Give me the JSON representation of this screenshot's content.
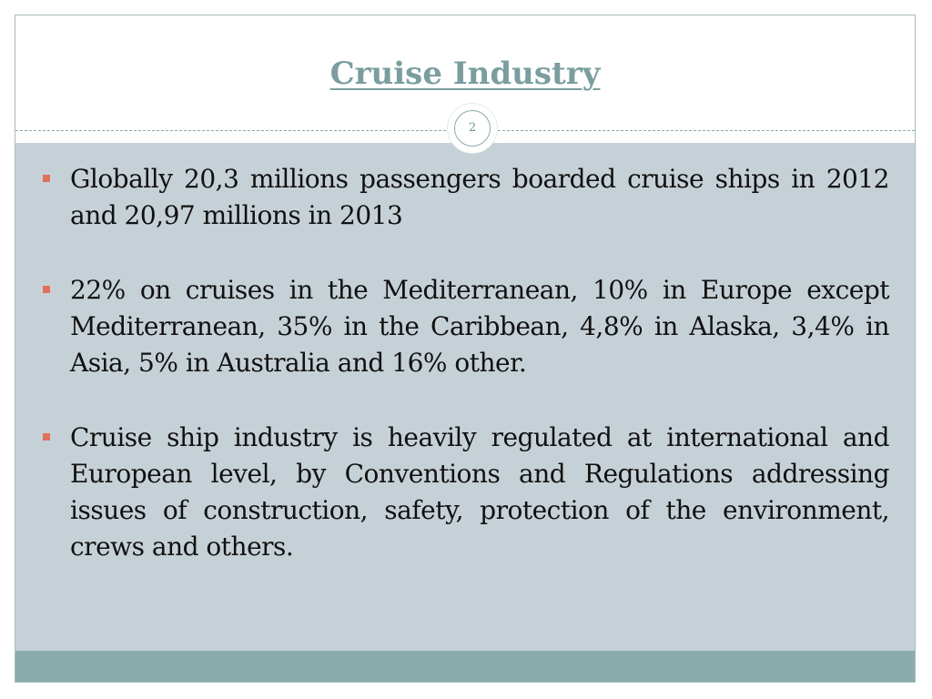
{
  "slide": {
    "title": "Cruise Industry",
    "page_number": "2",
    "accent_color": "#7b9da0",
    "bullet_color": "#e0705c",
    "bullets": [
      {
        "text": "Globally 20,3 millions passengers boarded cruise ships in 2012 and 20,97 millions  in 2013"
      },
      {
        "text": "22% on cruises in the Mediterranean, 10% in Europe except Mediterranean, 35% in the Caribbean, 4,8% in Alaska, 3,4% in Asia, 5% in Australia and 16% other."
      },
      {
        "text": "Cruise ship industry is heavily regulated at international and European level, by Conventions and Regulations addressing issues of construction, safety, protection of the environment, crews and others."
      }
    ]
  }
}
